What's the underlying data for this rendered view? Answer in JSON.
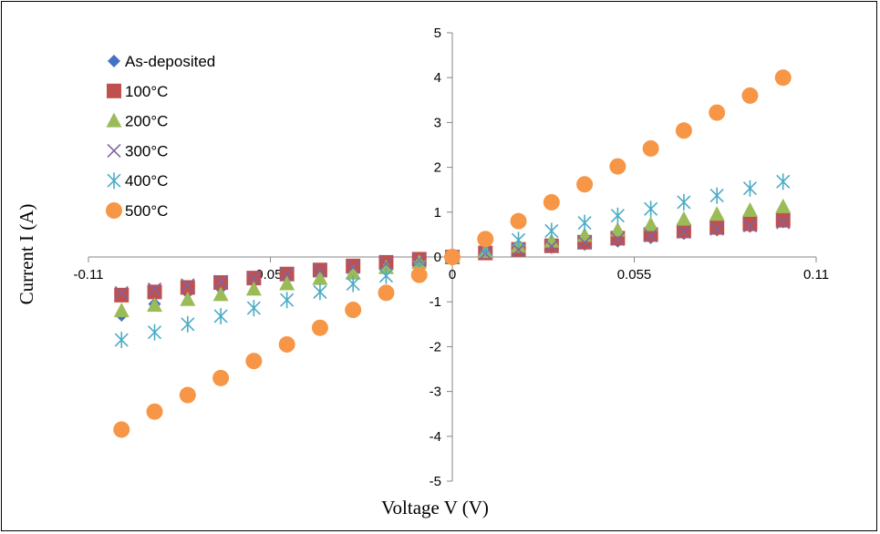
{
  "chart_data": {
    "type": "scatter",
    "title": "",
    "xlabel": "Voltage V (V)",
    "ylabel": "Current I (A)",
    "xlim": [
      -0.11,
      0.11
    ],
    "ylim": [
      -5,
      5
    ],
    "xticks": [
      -0.11,
      -0.055,
      0,
      0.055,
      0.11
    ],
    "xtick_labels": [
      "-0.11",
      "-0.055",
      "0",
      "0.055",
      "0.11"
    ],
    "yticks": [
      -5,
      -4,
      -3,
      -2,
      -1,
      0,
      1,
      2,
      3,
      4,
      5
    ],
    "ytick_labels": [
      "-5",
      "-4",
      "-3",
      "-2",
      "-1",
      "0",
      "1",
      "2",
      "3",
      "4",
      "5"
    ],
    "grid": false,
    "legend_position": "top-left",
    "x": [
      -0.1,
      -0.09,
      -0.08,
      -0.07,
      -0.06,
      -0.05,
      -0.04,
      -0.03,
      -0.02,
      -0.01,
      0,
      0.01,
      0.02,
      0.03,
      0.04,
      0.05,
      0.06,
      0.07,
      0.08,
      0.09,
      0.1
    ],
    "series": [
      {
        "name": "As-deposited",
        "marker": "diamond",
        "color": "#4472C4",
        "values": [
          -1.3,
          -1.05,
          -0.8,
          -0.7,
          -0.55,
          -0.42,
          -0.32,
          -0.22,
          -0.12,
          -0.05,
          0,
          0.07,
          0.14,
          0.21,
          0.28,
          0.35,
          0.43,
          0.52,
          0.6,
          0.68,
          0.78
        ]
      },
      {
        "name": "100°C",
        "marker": "square",
        "color": "#C0504D",
        "values": [
          -0.85,
          -0.78,
          -0.68,
          -0.57,
          -0.47,
          -0.38,
          -0.29,
          -0.2,
          -0.12,
          -0.05,
          0,
          0.09,
          0.17,
          0.25,
          0.33,
          0.42,
          0.5,
          0.58,
          0.66,
          0.74,
          0.82
        ]
      },
      {
        "name": "200°C",
        "marker": "triangle",
        "color": "#9BBB59",
        "values": [
          -1.2,
          -1.08,
          -0.95,
          -0.84,
          -0.72,
          -0.6,
          -0.48,
          -0.36,
          -0.24,
          -0.12,
          0,
          0.12,
          0.24,
          0.35,
          0.48,
          0.6,
          0.72,
          0.84,
          0.95,
          1.04,
          1.12
        ]
      },
      {
        "name": "300°C",
        "marker": "x",
        "color": "#8064A2",
        "values": [
          -0.8,
          -0.72,
          -0.63,
          -0.55,
          -0.47,
          -0.39,
          -0.31,
          -0.23,
          -0.15,
          -0.07,
          0,
          0.08,
          0.16,
          0.24,
          0.32,
          0.4,
          0.48,
          0.56,
          0.63,
          0.7,
          0.77
        ]
      },
      {
        "name": "400°C",
        "marker": "star",
        "color": "#4BACC6",
        "values": [
          -1.85,
          -1.68,
          -1.5,
          -1.32,
          -1.14,
          -0.96,
          -0.78,
          -0.6,
          -0.42,
          -0.22,
          0,
          0.18,
          0.38,
          0.58,
          0.76,
          0.92,
          1.07,
          1.22,
          1.37,
          1.53,
          1.68
        ]
      },
      {
        "name": "500°C",
        "marker": "circle",
        "color": "#F79646",
        "values": [
          -3.85,
          -3.45,
          -3.08,
          -2.7,
          -2.32,
          -1.95,
          -1.58,
          -1.18,
          -0.8,
          -0.4,
          0,
          0.4,
          0.8,
          1.22,
          1.62,
          2.02,
          2.42,
          2.82,
          3.22,
          3.6,
          4.0
        ]
      }
    ]
  }
}
